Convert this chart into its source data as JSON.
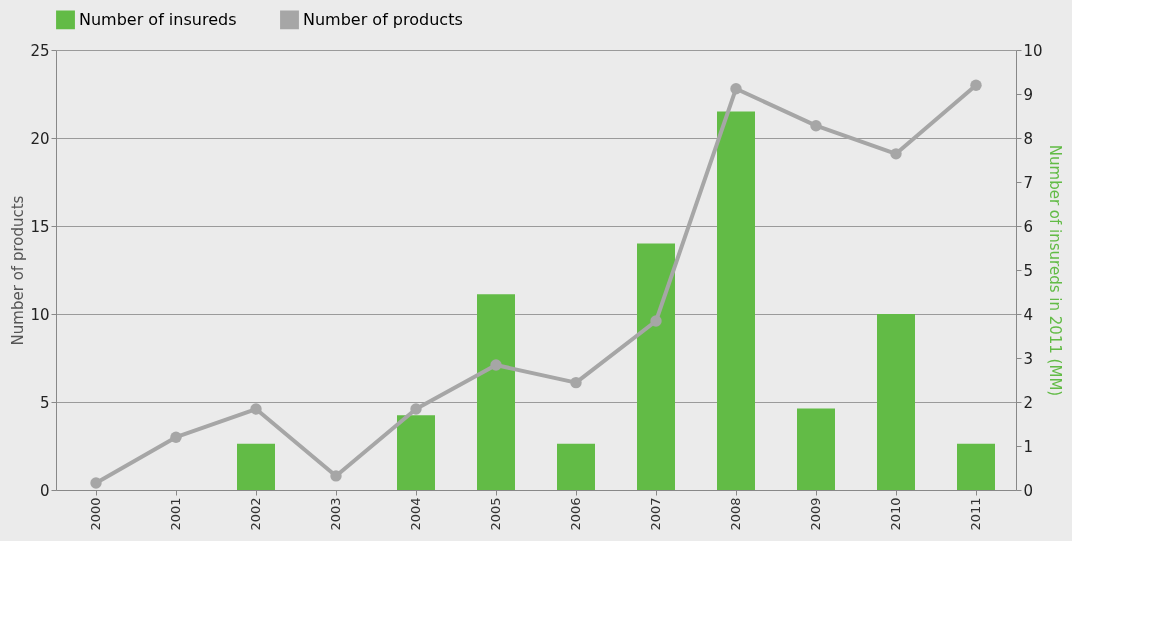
{
  "chart_data": {
    "type": "bar",
    "categories": [
      "2000",
      "2001",
      "2002",
      "2003",
      "2004",
      "2005",
      "2006",
      "2007",
      "2008",
      "2009",
      "2010",
      "2011"
    ],
    "ylabel": "Number of products",
    "y2label": "Number of insureds in 2011 (MM)",
    "ylim": [
      0,
      25
    ],
    "yticks": [
      0,
      5,
      10,
      15,
      20,
      25
    ],
    "y2lim": [
      0,
      10
    ],
    "y2ticks": [
      0,
      1,
      2,
      3,
      4,
      5,
      6,
      7,
      8,
      9,
      10
    ],
    "series": [
      {
        "name": "Number of insureds",
        "axis": "y2",
        "color": "#62bb46",
        "values": [
          null,
          null,
          1.05,
          null,
          1.7,
          4.45,
          1.05,
          5.6,
          8.6,
          1.85,
          4.0,
          1.05
        ]
      },
      {
        "name": "Number of products",
        "type": "line",
        "axis": "y",
        "color": "#a6a6a6",
        "marker": "circle",
        "values": [
          0.4,
          3.0,
          4.6,
          0.8,
          4.6,
          7.1,
          6.1,
          9.6,
          22.8,
          20.7,
          19.1,
          23.0
        ]
      }
    ],
    "grid": "y",
    "legend": "top"
  }
}
